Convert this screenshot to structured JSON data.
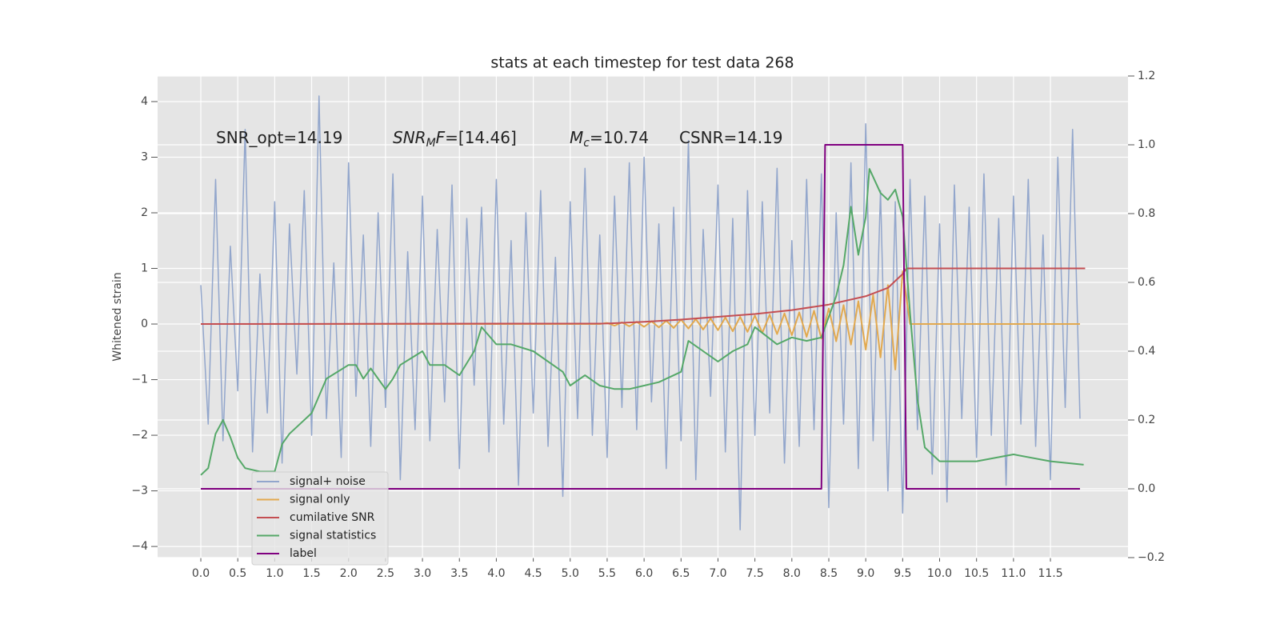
{
  "chart_data": {
    "type": "line",
    "title": "stats at each timestep for test data 268",
    "ylabel": "Whitened strain",
    "grid": true,
    "legend": "lower left",
    "xlim": [
      -0.585,
      12.55
    ],
    "ylim": [
      -4.2,
      4.46
    ],
    "y2lim": [
      -0.2,
      1.2
    ],
    "xticks": [
      {
        "value": 0,
        "label": "0.0"
      },
      0.5,
      {
        "value": 1,
        "label": "1.0"
      },
      1.5,
      {
        "value": 2,
        "label": "2.0"
      },
      2.5,
      {
        "value": 3,
        "label": "3.0"
      },
      3.5,
      {
        "value": 4,
        "label": "4.0"
      },
      4.5,
      {
        "value": 5,
        "label": "5.0"
      },
      5.5,
      {
        "value": 6,
        "label": "6.0"
      },
      6.5,
      {
        "value": 7,
        "label": "7.0"
      },
      7.5,
      {
        "value": 8,
        "label": "8.0"
      },
      8.5,
      {
        "value": 9,
        "label": "9.0"
      },
      9.5,
      {
        "value": 10,
        "label": "10.0"
      },
      10.5,
      {
        "value": 11,
        "label": "11.0"
      },
      11.5
    ],
    "yticks": [
      {
        "value": -4,
        "label": "−4"
      },
      {
        "value": -3,
        "label": "−3"
      },
      {
        "value": -2,
        "label": "−2"
      },
      {
        "value": -1,
        "label": "−1"
      },
      0,
      1,
      2,
      3,
      4
    ],
    "y2ticks": [
      {
        "value": -0.2,
        "label": "−0.2"
      },
      {
        "value": 0,
        "label": "0.0"
      },
      0.2,
      0.4,
      0.6,
      0.8,
      {
        "value": 1,
        "label": "1.0"
      },
      1.2
    ],
    "annotations": [
      {
        "parts": [
          {
            "text": "SNR_opt=14.19"
          }
        ]
      },
      {
        "parts": [
          {
            "text": "SNR",
            "italic": true
          },
          {
            "text": "M",
            "italic": true,
            "sub": true
          },
          {
            "text": "F",
            "italic": true
          },
          {
            "text": "=[14.46]"
          }
        ]
      },
      {
        "parts": [
          {
            "text": "M",
            "italic": true
          },
          {
            "text": "c",
            "italic": true,
            "sub": true
          },
          {
            "text": "=10.74"
          }
        ]
      },
      {
        "parts": [
          {
            "text": "CSNR=14.19"
          }
        ]
      }
    ],
    "x": [
      0,
      0.1,
      0.2,
      0.3,
      0.4,
      0.5,
      0.6,
      0.7,
      0.8,
      0.9,
      1,
      1.1,
      1.2,
      1.3,
      1.4,
      1.5,
      1.6,
      1.7,
      1.8,
      1.9,
      2,
      2.1,
      2.2,
      2.3,
      2.4,
      2.5,
      2.6,
      2.7,
      2.8,
      2.9,
      3,
      3.1,
      3.2,
      3.3,
      3.4,
      3.5,
      3.6,
      3.7,
      3.8,
      3.9,
      4,
      4.1,
      4.2,
      4.3,
      4.4,
      4.5,
      4.6,
      4.7,
      4.8,
      4.9,
      5,
      5.1,
      5.2,
      5.3,
      5.4,
      5.5,
      5.6,
      5.7,
      5.8,
      5.9,
      6,
      6.1,
      6.2,
      6.3,
      6.4,
      6.5,
      6.6,
      6.7,
      6.8,
      6.9,
      7,
      7.1,
      7.2,
      7.3,
      7.4,
      7.5,
      7.6,
      7.7,
      7.8,
      7.9,
      8,
      8.1,
      8.2,
      8.3,
      8.4,
      8.5,
      8.6,
      8.7,
      8.8,
      8.9,
      9,
      9.1,
      9.2,
      9.3,
      9.4,
      9.5,
      9.6,
      9.7,
      9.8,
      9.9,
      10,
      10.1,
      10.2,
      10.3,
      10.4,
      10.5,
      10.6,
      10.7,
      10.8,
      10.9,
      11,
      11.1,
      11.2,
      11.3,
      11.4,
      11.5,
      11.6,
      11.7,
      11.8,
      11.9
    ],
    "series": [
      {
        "name": "signal+ noise",
        "color": "#92a6cc",
        "values": [
          0.7,
          -1.8,
          2.6,
          -2.1,
          1.4,
          -1.2,
          3.5,
          -2.3,
          0.9,
          -1.6,
          2.2,
          -2.5,
          1.8,
          -0.9,
          2.4,
          -2.0,
          4.1,
          -1.7,
          1.1,
          -2.4,
          2.9,
          -1.3,
          1.6,
          -2.2,
          2.0,
          -1.5,
          2.7,
          -2.8,
          1.3,
          -1.9,
          2.3,
          -2.1,
          1.7,
          -1.4,
          2.5,
          -2.6,
          1.9,
          -1.1,
          2.1,
          -2.3,
          2.6,
          -1.8,
          1.5,
          -2.9,
          2.0,
          -1.6,
          2.4,
          -2.2,
          1.2,
          -3.1,
          2.2,
          -1.7,
          2.8,
          -2.0,
          1.6,
          -2.4,
          2.3,
          -1.5,
          2.9,
          -1.9,
          3.0,
          -1.4,
          1.8,
          -2.6,
          2.1,
          -2.1,
          3.3,
          -2.8,
          1.7,
          -1.3,
          2.5,
          -2.3,
          1.9,
          -3.7,
          2.4,
          -2.0,
          2.2,
          -1.6,
          2.8,
          -2.5,
          1.5,
          -2.2,
          2.6,
          -1.9,
          2.7,
          -3.3,
          2.0,
          -1.8,
          2.9,
          -2.6,
          3.6,
          -2.1,
          2.4,
          -3.0,
          2.2,
          -3.4,
          2.6,
          -1.9,
          2.3,
          -2.7,
          1.8,
          -3.2,
          2.5,
          -1.7,
          2.1,
          -2.4,
          2.7,
          -2.0,
          1.9,
          -2.9,
          2.3,
          -1.8,
          2.6,
          -2.2,
          1.6,
          -2.8,
          3.0,
          -1.5,
          3.5,
          -1.7
        ]
      },
      {
        "name": "signal only",
        "color": "#e2a94f",
        "values": [
          0,
          0,
          0,
          0,
          0,
          0,
          0,
          0,
          0,
          0,
          0,
          0,
          0,
          0,
          0,
          0,
          0,
          0,
          0,
          0,
          0,
          0,
          0,
          0,
          0,
          0,
          0,
          0,
          0,
          0,
          0,
          0,
          0,
          0,
          0,
          0,
          0,
          0,
          0,
          0,
          0,
          0,
          0,
          0,
          0,
          0,
          0,
          0,
          0,
          0,
          0,
          0,
          0,
          0,
          0,
          0.02,
          -0.03,
          0.03,
          -0.04,
          0.04,
          -0.05,
          0.05,
          -0.06,
          0.06,
          -0.07,
          0.08,
          -0.08,
          0.09,
          -0.1,
          0.1,
          -0.11,
          0.12,
          -0.13,
          0.13,
          -0.14,
          0.15,
          -0.16,
          0.17,
          -0.18,
          0.19,
          -0.2,
          0.21,
          -0.23,
          0.24,
          -0.26,
          0.28,
          -0.31,
          0.34,
          -0.37,
          0.41,
          -0.46,
          0.52,
          -0.6,
          0.7,
          -0.82,
          0.95,
          0,
          0,
          0,
          0,
          0,
          0,
          0,
          0,
          0,
          0,
          0,
          0,
          0,
          0,
          0,
          0,
          0,
          0,
          0,
          0,
          0,
          0,
          0,
          0
        ]
      },
      {
        "name": "cumilative SNR",
        "color": "#c44e52",
        "x": [
          0,
          5.5,
          6,
          6.5,
          7,
          7.5,
          8,
          8.5,
          9,
          9.3,
          9.5,
          9.55,
          11.97
        ],
        "values": [
          0,
          0.01,
          0.04,
          0.08,
          0.13,
          0.18,
          0.25,
          0.35,
          0.5,
          0.65,
          0.9,
          1,
          1
        ]
      },
      {
        "name": "signal statistics",
        "color": "#55a868",
        "axis": "y2",
        "x": [
          0,
          0.1,
          0.2,
          0.3,
          0.4,
          0.5,
          0.6,
          0.8,
          1.0,
          1.1,
          1.2,
          1.5,
          1.7,
          2.0,
          2.1,
          2.2,
          2.3,
          2.5,
          2.6,
          2.7,
          3.0,
          3.1,
          3.3,
          3.5,
          3.7,
          3.8,
          4.0,
          4.2,
          4.5,
          4.9,
          5.0,
          5.2,
          5.4,
          5.6,
          5.8,
          6.0,
          6.2,
          6.5,
          6.6,
          7.0,
          7.2,
          7.4,
          7.5,
          7.8,
          8.0,
          8.2,
          8.4,
          8.6,
          8.7,
          8.8,
          8.9,
          9.0,
          9.05,
          9.2,
          9.3,
          9.4,
          9.5,
          9.6,
          9.7,
          9.8,
          10.0,
          10.5,
          11.0,
          11.5,
          11.95
        ],
        "values": [
          0.04,
          0.06,
          0.16,
          0.2,
          0.15,
          0.09,
          0.06,
          0.05,
          0.05,
          0.13,
          0.16,
          0.22,
          0.32,
          0.36,
          0.36,
          0.32,
          0.35,
          0.29,
          0.32,
          0.36,
          0.4,
          0.36,
          0.36,
          0.33,
          0.4,
          0.47,
          0.42,
          0.42,
          0.4,
          0.34,
          0.3,
          0.33,
          0.3,
          0.29,
          0.29,
          0.3,
          0.31,
          0.34,
          0.43,
          0.37,
          0.4,
          0.42,
          0.47,
          0.42,
          0.44,
          0.43,
          0.44,
          0.56,
          0.65,
          0.82,
          0.68,
          0.79,
          0.93,
          0.86,
          0.84,
          0.87,
          0.79,
          0.51,
          0.26,
          0.12,
          0.08,
          0.08,
          0.1,
          0.08,
          0.07
        ]
      },
      {
        "name": "label",
        "color": "#800080",
        "axis": "y2",
        "x": [
          0,
          8.4,
          8.45,
          9.5,
          9.55,
          11.9
        ],
        "values": [
          0,
          0,
          1,
          1,
          0,
          0
        ]
      }
    ]
  }
}
